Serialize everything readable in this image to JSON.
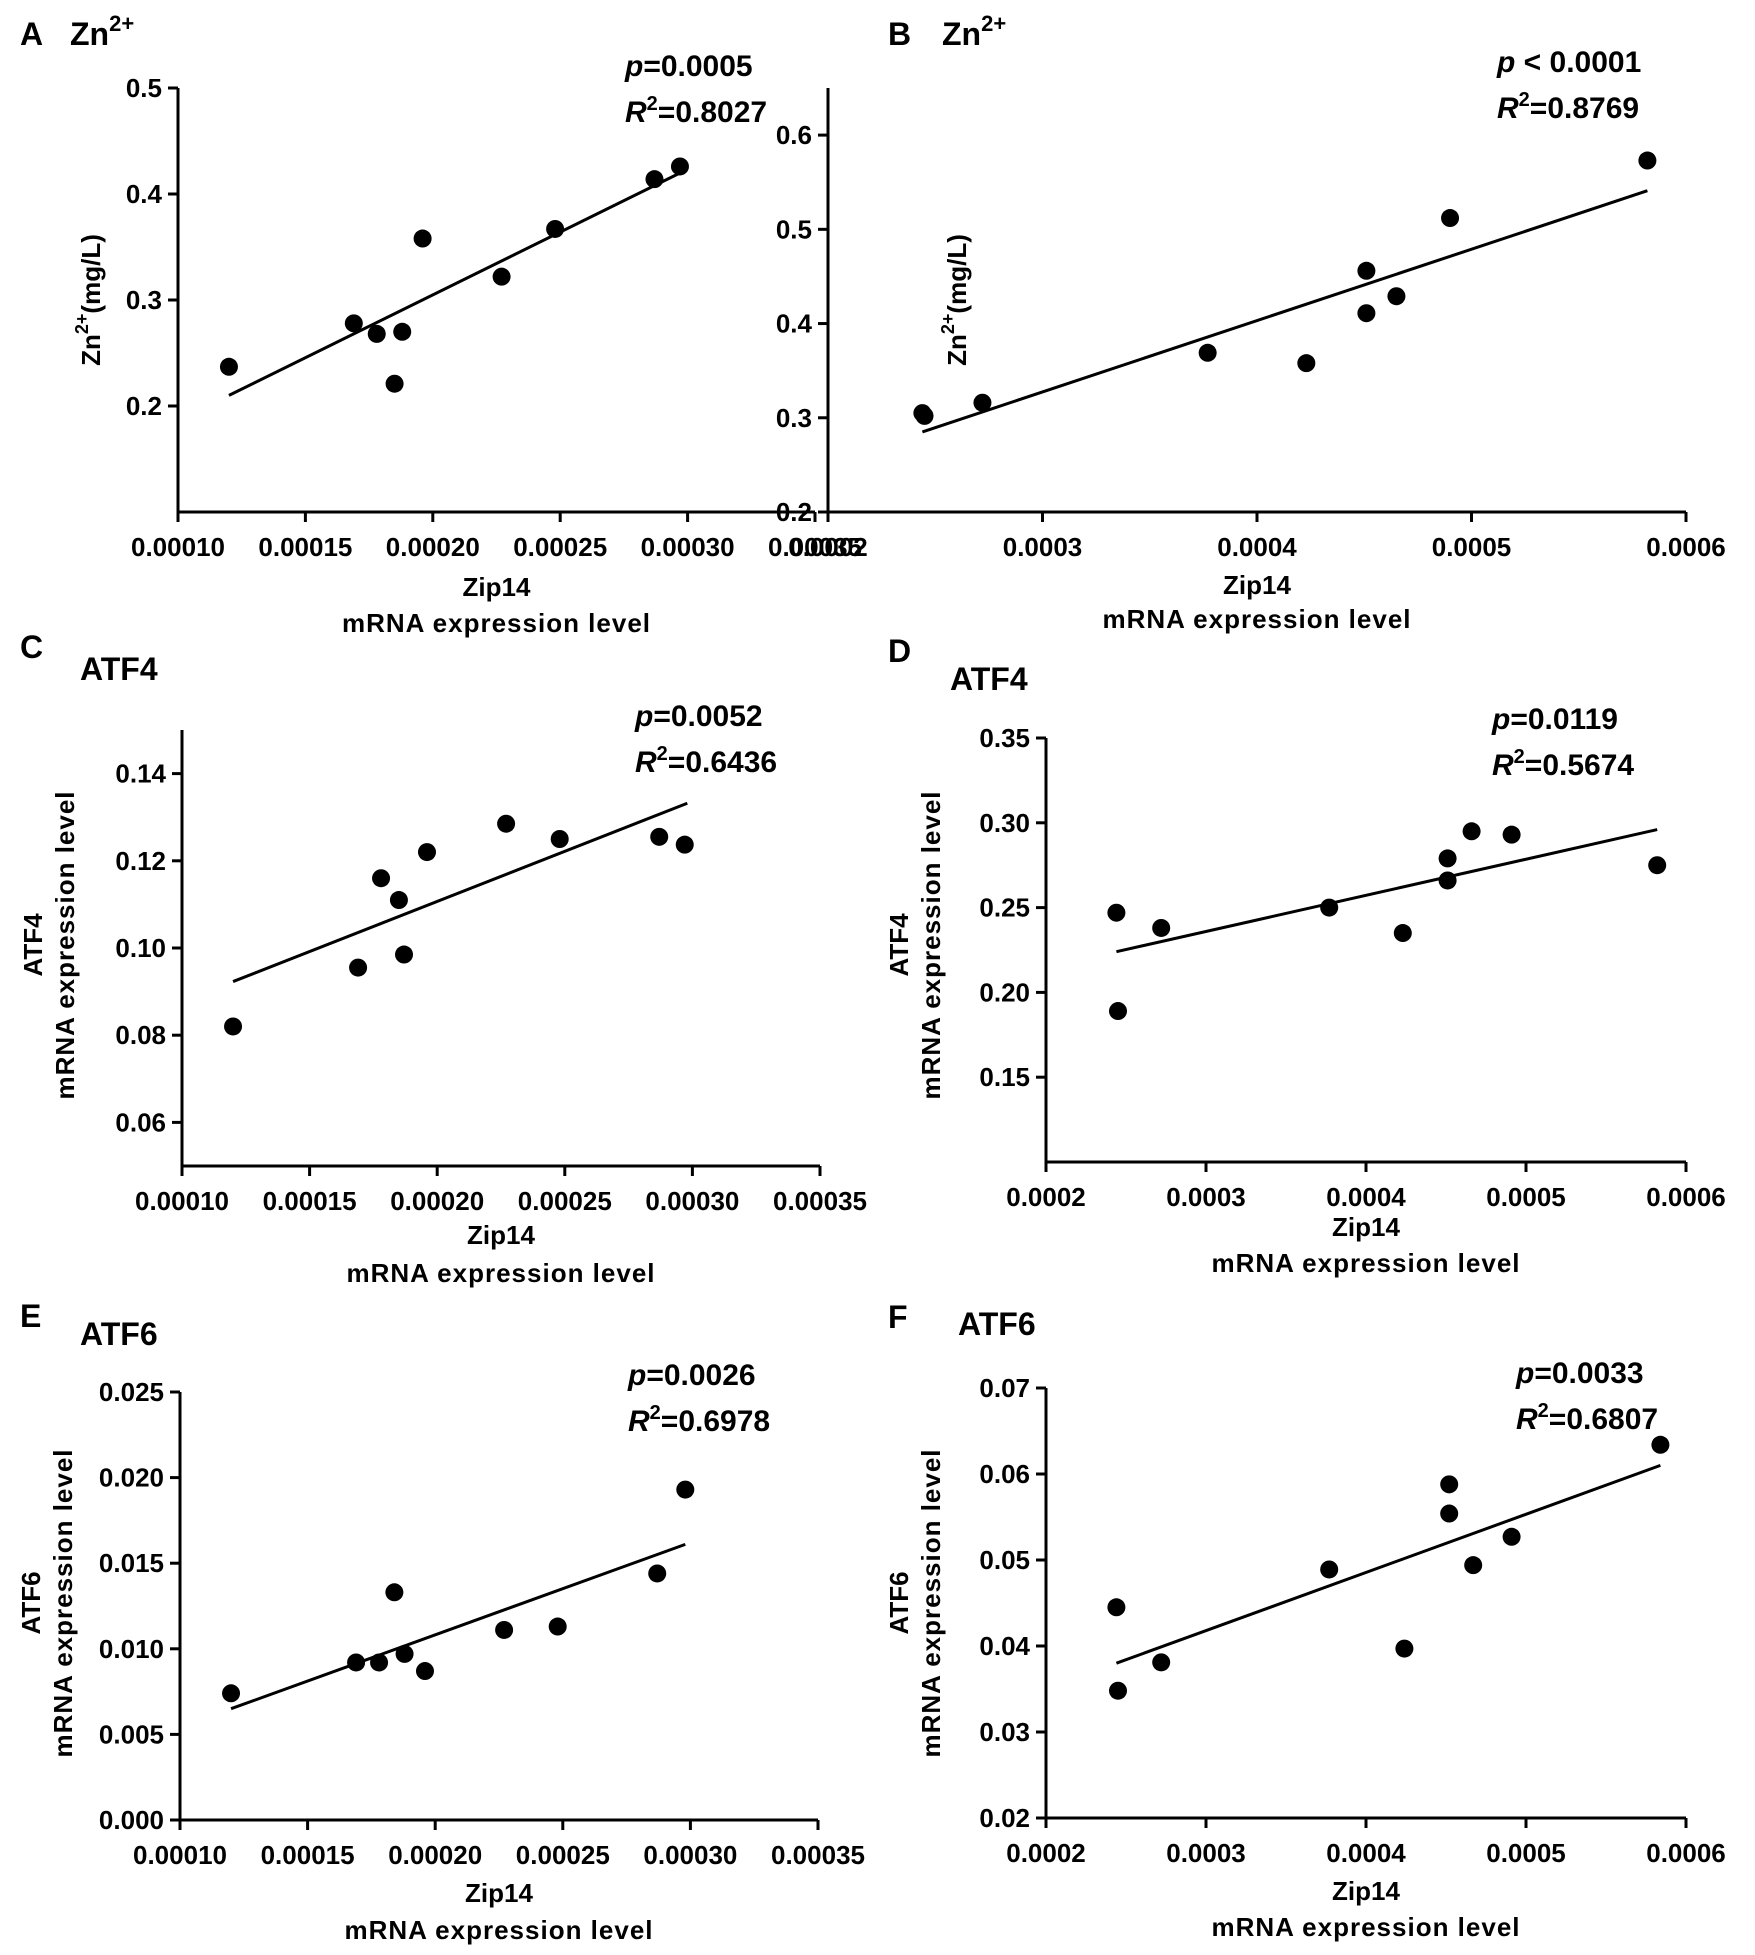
{
  "chart_data": [
    {
      "type": "scatter",
      "letter": "A",
      "title": "Zn2+",
      "title_sup": "2+",
      "title_base": "Zn",
      "ylabel": "Zn2+(mg/L)",
      "ylabel_base": "Zn",
      "ylabel_sup": "2+",
      "ylabel_rest": "(mg/L)",
      "xlabel_line1": "Zip14",
      "xlabel_line2": "mRNA expression level",
      "p_text": "=0.0005",
      "r2_text": "=0.8027",
      "xlim": [
        0.0001,
        0.00035
      ],
      "ylim": [
        0.1,
        0.5
      ],
      "xticks": [
        "0.00010",
        "0.00015",
        "0.00020",
        "0.00025",
        "0.00030",
        "0.00035"
      ],
      "yticks": [
        "0.2",
        "0.3",
        "0.4",
        "0.5"
      ],
      "x": [
        0.00012,
        0.000169,
        0.000178,
        0.000185,
        0.000188,
        0.000196,
        0.000227,
        0.000248,
        0.000287,
        0.000297
      ],
      "y": [
        0.237,
        0.278,
        0.268,
        0.221,
        0.27,
        0.358,
        0.322,
        0.367,
        0.414,
        0.426
      ],
      "fit": [
        [
          0.00012,
          0.21
        ],
        [
          0.000298,
          0.421
        ]
      ]
    },
    {
      "type": "scatter",
      "letter": "B",
      "title": "Zn2+",
      "title_sup": "2+",
      "title_base": "Zn",
      "ylabel": "Zn2+(mg/L)",
      "ylabel_base": "Zn",
      "ylabel_sup": "2+",
      "ylabel_rest": "(mg/L)",
      "xlabel_line1": "Zip14",
      "xlabel_line2": "mRNA expression level",
      "p_text": " < 0.0001",
      "r2_text": "=0.8769",
      "xlim": [
        0.0002,
        0.0006
      ],
      "ylim": [
        0.2,
        0.65
      ],
      "xticks": [
        "0.0002",
        "0.0003",
        "0.0004",
        "0.0005",
        "0.0006"
      ],
      "yticks": [
        "0.2",
        "0.3",
        "0.4",
        "0.5",
        "0.6"
      ],
      "x": [
        0.000244,
        0.000245,
        0.000272,
        0.000377,
        0.000423,
        0.000451,
        0.000451,
        0.000465,
        0.00049,
        0.000582
      ],
      "y": [
        0.305,
        0.302,
        0.316,
        0.369,
        0.358,
        0.456,
        0.411,
        0.429,
        0.512,
        0.573
      ],
      "fit": [
        [
          0.000244,
          0.285
        ],
        [
          0.000582,
          0.541
        ]
      ]
    },
    {
      "type": "scatter",
      "letter": "C",
      "title": "ATF4",
      "ylabel_line1": "ATF4",
      "ylabel_line2": "mRNA expression level",
      "xlabel_line1": "Zip14",
      "xlabel_line2": "mRNA expression level",
      "p_text": "=0.0052",
      "r2_text": "=0.6436",
      "xlim": [
        0.0001,
        0.00035
      ],
      "ylim": [
        0.05,
        0.15
      ],
      "xticks": [
        "0.00010",
        "0.00015",
        "0.00020",
        "0.00025",
        "0.00030",
        "0.00035"
      ],
      "yticks": [
        "0.06",
        "0.08",
        "0.10",
        "0.12",
        "0.14"
      ],
      "x": [
        0.00012,
        0.000169,
        0.000178,
        0.000185,
        0.000187,
        0.000196,
        0.000227,
        0.000248,
        0.000287,
        0.000297
      ],
      "y": [
        0.082,
        0.0955,
        0.116,
        0.111,
        0.0985,
        0.122,
        0.1285,
        0.125,
        0.1255,
        0.1237
      ],
      "fit": [
        [
          0.00012,
          0.0923
        ],
        [
          0.000298,
          0.1332
        ]
      ]
    },
    {
      "type": "scatter",
      "letter": "D",
      "title": "ATF4",
      "ylabel_line1": "ATF4",
      "ylabel_line2": "mRNA expression level",
      "xlabel_line1": "Zip14",
      "xlabel_line2": "mRNA expression level",
      "p_text": "=0.0119",
      "r2_text": "=0.5674",
      "xlim": [
        0.0002,
        0.0006
      ],
      "ylim": [
        0.1,
        0.35
      ],
      "xticks": [
        "0.0002",
        "0.0003",
        "0.0004",
        "0.0005",
        "0.0006"
      ],
      "yticks": [
        "0.15",
        "0.20",
        "0.25",
        "0.30",
        "0.35"
      ],
      "x": [
        0.000244,
        0.000245,
        0.000272,
        0.000377,
        0.000423,
        0.000451,
        0.000451,
        0.000466,
        0.000491,
        0.000582
      ],
      "y": [
        0.247,
        0.189,
        0.238,
        0.25,
        0.235,
        0.279,
        0.266,
        0.295,
        0.293,
        0.275
      ],
      "fit": [
        [
          0.000244,
          0.224
        ],
        [
          0.000582,
          0.296
        ]
      ]
    },
    {
      "type": "scatter",
      "letter": "E",
      "title": "ATF6",
      "ylabel_line1": "ATF6",
      "ylabel_line2": "mRNA expression level",
      "xlabel_line1": "Zip14",
      "xlabel_line2": "mRNA expression level",
      "p_text": "=0.0026",
      "r2_text": "=0.6978",
      "xlim": [
        0.0001,
        0.00035
      ],
      "ylim": [
        0.0,
        0.025
      ],
      "xticks": [
        "0.00010",
        "0.00015",
        "0.00020",
        "0.00025",
        "0.00030",
        "0.00035"
      ],
      "yticks": [
        "0.000",
        "0.005",
        "0.010",
        "0.015",
        "0.020",
        "0.025"
      ],
      "x": [
        0.00012,
        0.000169,
        0.000178,
        0.000184,
        0.000188,
        0.000196,
        0.000227,
        0.000248,
        0.000287,
        0.000298
      ],
      "y": [
        0.0074,
        0.0092,
        0.0092,
        0.0133,
        0.0097,
        0.0087,
        0.0111,
        0.0113,
        0.0144,
        0.0193
      ],
      "fit": [
        [
          0.00012,
          0.0065
        ],
        [
          0.000298,
          0.0161
        ]
      ]
    },
    {
      "type": "scatter",
      "letter": "F",
      "title": "ATF6",
      "ylabel_line1": "ATF6",
      "ylabel_line2": "mRNA expression level",
      "xlabel_line1": "Zip14",
      "xlabel_line2": "mRNA expression level",
      "p_text": "=0.0033",
      "r2_text": "=0.6807",
      "xlim": [
        0.0002,
        0.0006
      ],
      "ylim": [
        0.02,
        0.07
      ],
      "xticks": [
        "0.0002",
        "0.0003",
        "0.0004",
        "0.0005",
        "0.0006"
      ],
      "yticks": [
        "0.02",
        "0.03",
        "0.04",
        "0.05",
        "0.06",
        "0.07"
      ],
      "x": [
        0.000244,
        0.000245,
        0.000272,
        0.000377,
        0.000424,
        0.000452,
        0.000452,
        0.000467,
        0.000491,
        0.000584
      ],
      "y": [
        0.0445,
        0.0348,
        0.0381,
        0.0489,
        0.0397,
        0.0588,
        0.0554,
        0.0494,
        0.0527,
        0.0634
      ],
      "fit": [
        [
          0.000244,
          0.038
        ],
        [
          0.000584,
          0.061
        ]
      ]
    }
  ]
}
